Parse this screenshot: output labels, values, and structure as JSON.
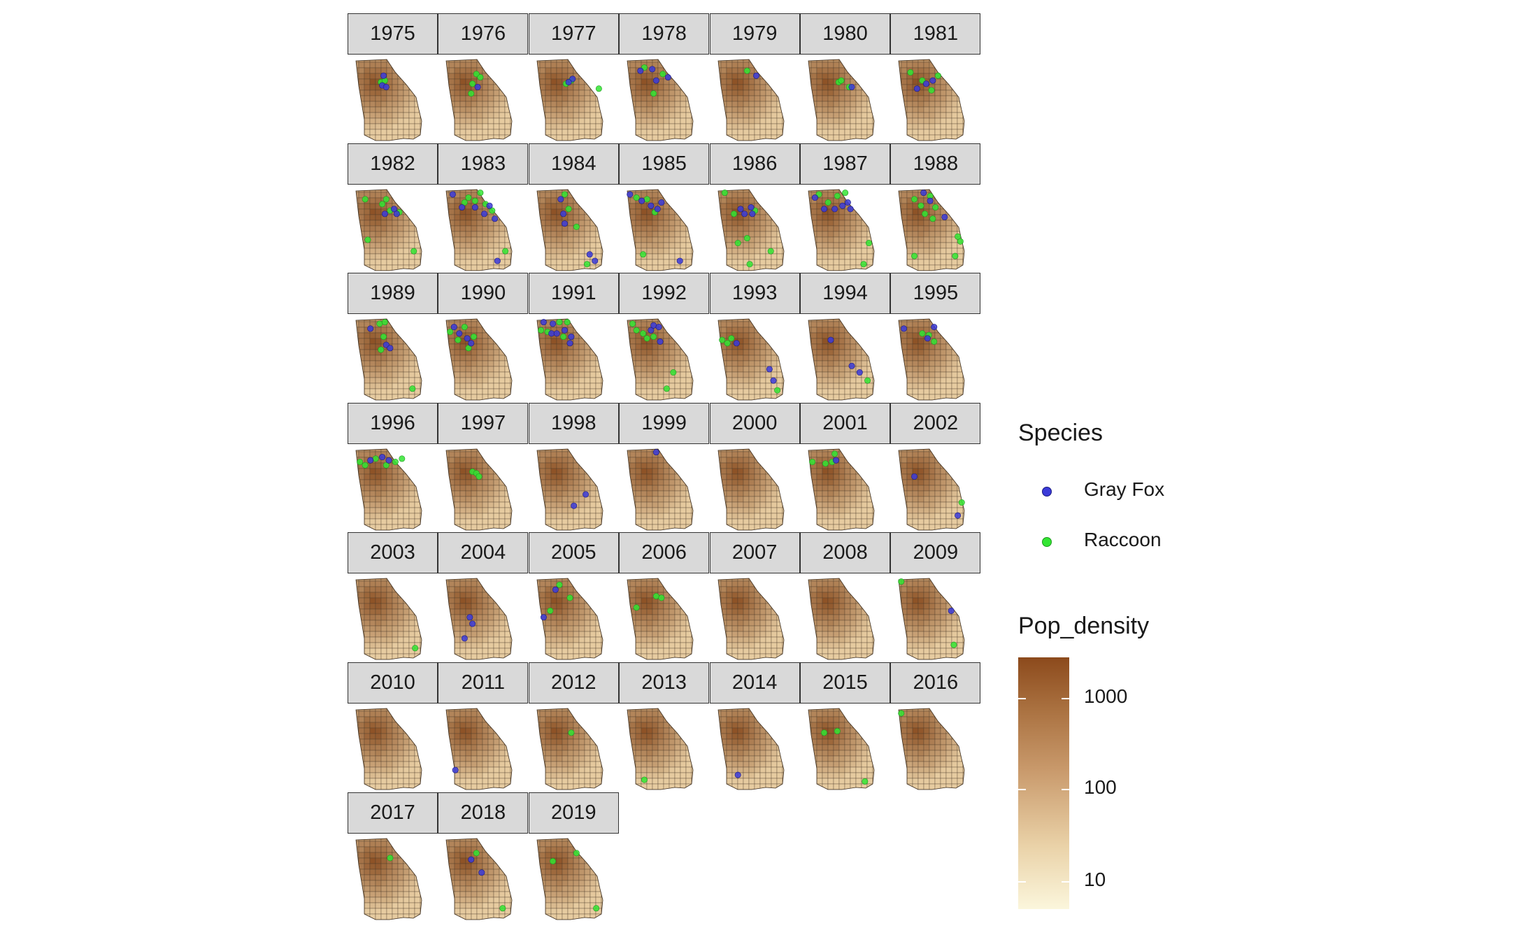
{
  "facet_years": [
    "1975",
    "1976",
    "1977",
    "1978",
    "1979",
    "1980",
    "1981",
    "1982",
    "1983",
    "1984",
    "1985",
    "1986",
    "1987",
    "1988",
    "1989",
    "1990",
    "1991",
    "1992",
    "1993",
    "1994",
    "1995",
    "1996",
    "1997",
    "1998",
    "1999",
    "2000",
    "2001",
    "2002",
    "2003",
    "2004",
    "2005",
    "2006",
    "2007",
    "2008",
    "2009",
    "2010",
    "2011",
    "2012",
    "2013",
    "2014",
    "2015",
    "2016",
    "2017",
    "2018",
    "2019"
  ],
  "legend": {
    "species_title": "Species",
    "species": [
      {
        "name": "Gray Fox",
        "color": "#3b3bd9"
      },
      {
        "name": "Raccoon",
        "color": "#33e533"
      }
    ],
    "density_title": "Pop_density",
    "density_scale": "log10",
    "density_breaks": [
      "1000",
      "100",
      "10"
    ],
    "density_colors": {
      "low": "#fbf6dc",
      "high": "#8c4a1c"
    }
  },
  "map_colors": {
    "county_stroke": "#4a3a2a",
    "border": "#3a2a1a"
  },
  "map_data": {
    "type": "faceted-choropleth-with-points",
    "region": "Georgia counties",
    "points": {
      "1975": {
        "fox": [
          [
            0.42,
            0.2
          ],
          [
            0.4,
            0.32
          ],
          [
            0.46,
            0.34
          ]
        ],
        "raccoon": [
          [
            0.38,
            0.28
          ],
          [
            0.44,
            0.26
          ]
        ]
      },
      "1976": {
        "fox": [
          [
            0.48,
            0.34
          ]
        ],
        "raccoon": [
          [
            0.46,
            0.18
          ],
          [
            0.52,
            0.22
          ],
          [
            0.4,
            0.3
          ],
          [
            0.38,
            0.42
          ]
        ]
      },
      "1977": {
        "fox": [
          [
            0.54,
            0.24
          ],
          [
            0.48,
            0.28
          ]
        ],
        "raccoon": [
          [
            0.44,
            0.3
          ],
          [
            0.52,
            0.26
          ],
          [
            0.94,
            0.36
          ]
        ]
      },
      "1978": {
        "fox": [
          [
            0.2,
            0.14
          ],
          [
            0.38,
            0.12
          ],
          [
            0.44,
            0.26
          ],
          [
            0.62,
            0.22
          ]
        ],
        "raccoon": [
          [
            0.26,
            0.1
          ],
          [
            0.54,
            0.18
          ],
          [
            0.4,
            0.42
          ]
        ]
      },
      "1979": {
        "fox": [
          [
            0.58,
            0.2
          ]
        ],
        "raccoon": [
          [
            0.44,
            0.14
          ]
        ]
      },
      "1980": {
        "fox": [
          [
            0.66,
            0.34
          ]
        ],
        "raccoon": [
          [
            0.46,
            0.28
          ],
          [
            0.5,
            0.26
          ],
          [
            0.62,
            0.34
          ]
        ]
      },
      "1981": {
        "fox": [
          [
            0.28,
            0.36
          ],
          [
            0.42,
            0.3
          ],
          [
            0.52,
            0.26
          ]
        ],
        "raccoon": [
          [
            0.18,
            0.16
          ],
          [
            0.36,
            0.26
          ],
          [
            0.6,
            0.2
          ],
          [
            0.5,
            0.38
          ]
        ]
      },
      "1982": {
        "fox": [
          [
            0.44,
            0.3
          ],
          [
            0.58,
            0.24
          ],
          [
            0.62,
            0.3
          ]
        ],
        "raccoon": [
          [
            0.14,
            0.12
          ],
          [
            0.4,
            0.18
          ],
          [
            0.46,
            0.12
          ],
          [
            0.52,
            0.26
          ],
          [
            0.66,
            0.28
          ],
          [
            0.18,
            0.62
          ],
          [
            0.88,
            0.76
          ]
        ]
      },
      "1983": {
        "fox": [
          [
            0.1,
            0.06
          ],
          [
            0.24,
            0.22
          ],
          [
            0.44,
            0.22
          ],
          [
            0.58,
            0.3
          ],
          [
            0.66,
            0.2
          ],
          [
            0.74,
            0.36
          ],
          [
            0.78,
            0.88
          ]
        ],
        "raccoon": [
          [
            0.28,
            0.16
          ],
          [
            0.34,
            0.1
          ],
          [
            0.44,
            0.14
          ],
          [
            0.52,
            0.04
          ],
          [
            0.6,
            0.18
          ],
          [
            0.7,
            0.26
          ],
          [
            0.9,
            0.76
          ]
        ]
      },
      "1984": {
        "fox": [
          [
            0.36,
            0.12
          ],
          [
            0.4,
            0.3
          ],
          [
            0.42,
            0.42
          ],
          [
            0.8,
            0.8
          ],
          [
            0.88,
            0.88
          ]
        ],
        "raccoon": [
          [
            0.42,
            0.06
          ],
          [
            0.48,
            0.24
          ],
          [
            0.6,
            0.46
          ],
          [
            0.76,
            0.92
          ]
        ]
      },
      "1985": {
        "fox": [
          [
            0.04,
            0.06
          ],
          [
            0.22,
            0.14
          ],
          [
            0.36,
            0.2
          ],
          [
            0.46,
            0.24
          ],
          [
            0.52,
            0.16
          ],
          [
            0.8,
            0.88
          ]
        ],
        "raccoon": [
          [
            0.14,
            0.1
          ],
          [
            0.3,
            0.12
          ],
          [
            0.42,
            0.28
          ],
          [
            0.24,
            0.8
          ]
        ]
      },
      "1986": {
        "fox": [
          [
            0.34,
            0.24
          ],
          [
            0.4,
            0.3
          ],
          [
            0.5,
            0.22
          ],
          [
            0.52,
            0.3
          ]
        ],
        "raccoon": [
          [
            0.1,
            0.04
          ],
          [
            0.24,
            0.3
          ],
          [
            0.3,
            0.66
          ],
          [
            0.44,
            0.6
          ],
          [
            0.48,
            0.92
          ],
          [
            0.8,
            0.76
          ],
          [
            0.56,
            0.26
          ]
        ]
      },
      "1987": {
        "fox": [
          [
            0.1,
            0.1
          ],
          [
            0.24,
            0.24
          ],
          [
            0.4,
            0.24
          ],
          [
            0.52,
            0.2
          ],
          [
            0.6,
            0.16
          ],
          [
            0.64,
            0.24
          ]
        ],
        "raccoon": [
          [
            0.16,
            0.06
          ],
          [
            0.3,
            0.16
          ],
          [
            0.44,
            0.08
          ],
          [
            0.56,
            0.04
          ],
          [
            0.92,
            0.66
          ],
          [
            0.84,
            0.92
          ]
        ]
      },
      "1988": {
        "fox": [
          [
            0.38,
            0.04
          ],
          [
            0.48,
            0.14
          ],
          [
            0.7,
            0.34
          ]
        ],
        "raccoon": [
          [
            0.24,
            0.12
          ],
          [
            0.34,
            0.2
          ],
          [
            0.4,
            0.3
          ],
          [
            0.48,
            0.08
          ],
          [
            0.56,
            0.22
          ],
          [
            0.52,
            0.36
          ],
          [
            0.9,
            0.58
          ],
          [
            0.94,
            0.64
          ],
          [
            0.86,
            0.82
          ],
          [
            0.24,
            0.82
          ]
        ]
      },
      "1989": {
        "fox": [
          [
            0.22,
            0.12
          ],
          [
            0.46,
            0.32
          ],
          [
            0.52,
            0.36
          ]
        ],
        "raccoon": [
          [
            0.36,
            0.06
          ],
          [
            0.44,
            0.04
          ],
          [
            0.42,
            0.22
          ],
          [
            0.38,
            0.38
          ],
          [
            0.86,
            0.86
          ]
        ]
      },
      "1990": {
        "fox": [
          [
            0.12,
            0.1
          ],
          [
            0.2,
            0.18
          ],
          [
            0.32,
            0.24
          ],
          [
            0.38,
            0.3
          ]
        ],
        "raccoon": [
          [
            0.06,
            0.16
          ],
          [
            0.18,
            0.26
          ],
          [
            0.28,
            0.1
          ],
          [
            0.42,
            0.22
          ],
          [
            0.34,
            0.36
          ]
        ]
      },
      "1991": {
        "fox": [
          [
            0.1,
            0.04
          ],
          [
            0.24,
            0.06
          ],
          [
            0.22,
            0.18
          ],
          [
            0.3,
            0.18
          ],
          [
            0.42,
            0.14
          ],
          [
            0.52,
            0.22
          ],
          [
            0.5,
            0.3
          ]
        ],
        "raccoon": [
          [
            0.06,
            0.14
          ],
          [
            0.16,
            0.16
          ],
          [
            0.34,
            0.04
          ],
          [
            0.46,
            0.04
          ],
          [
            0.4,
            0.22
          ]
        ]
      },
      "1992": {
        "fox": [
          [
            0.36,
            0.14
          ],
          [
            0.4,
            0.08
          ],
          [
            0.48,
            0.1
          ],
          [
            0.5,
            0.28
          ]
        ],
        "raccoon": [
          [
            0.08,
            0.06
          ],
          [
            0.14,
            0.14
          ],
          [
            0.24,
            0.18
          ],
          [
            0.3,
            0.24
          ],
          [
            0.4,
            0.22
          ],
          [
            0.7,
            0.66
          ],
          [
            0.6,
            0.86
          ]
        ]
      },
      "1993": {
        "fox": [
          [
            0.28,
            0.3
          ],
          [
            0.78,
            0.62
          ],
          [
            0.84,
            0.76
          ]
        ],
        "raccoon": [
          [
            0.06,
            0.26
          ],
          [
            0.14,
            0.3
          ],
          [
            0.2,
            0.24
          ],
          [
            0.9,
            0.88
          ]
        ]
      },
      "1994": {
        "fox": [
          [
            0.34,
            0.26
          ],
          [
            0.66,
            0.58
          ],
          [
            0.78,
            0.66
          ]
        ],
        "raccoon": [
          [
            0.9,
            0.76
          ]
        ]
      },
      "1995": {
        "fox": [
          [
            0.08,
            0.12
          ],
          [
            0.54,
            0.1
          ],
          [
            0.44,
            0.24
          ]
        ],
        "raccoon": [
          [
            0.36,
            0.18
          ],
          [
            0.46,
            0.2
          ],
          [
            0.54,
            0.28
          ]
        ]
      },
      "1996": {
        "fox": [
          [
            0.22,
            0.14
          ],
          [
            0.4,
            0.1
          ],
          [
            0.5,
            0.14
          ]
        ],
        "raccoon": [
          [
            0.06,
            0.16
          ],
          [
            0.14,
            0.2
          ],
          [
            0.3,
            0.12
          ],
          [
            0.46,
            0.2
          ],
          [
            0.6,
            0.16
          ],
          [
            0.7,
            0.12
          ]
        ]
      },
      "1997": {
        "fox": [],
        "raccoon": [
          [
            0.4,
            0.28
          ],
          [
            0.46,
            0.3
          ],
          [
            0.5,
            0.34
          ]
        ]
      },
      "1998": {
        "fox": [
          [
            0.56,
            0.7
          ],
          [
            0.74,
            0.56
          ]
        ],
        "raccoon": []
      },
      "1999": {
        "fox": [
          [
            0.44,
            0.04
          ]
        ],
        "raccoon": []
      },
      "2000": {
        "fox": [],
        "raccoon": []
      },
      "2001": {
        "fox": [
          [
            0.42,
            0.14
          ]
        ],
        "raccoon": [
          [
            0.06,
            0.16
          ],
          [
            0.26,
            0.18
          ],
          [
            0.36,
            0.16
          ],
          [
            0.4,
            0.06
          ]
        ]
      },
      "2002": {
        "fox": [
          [
            0.24,
            0.34
          ],
          [
            0.9,
            0.82
          ]
        ],
        "raccoon": [
          [
            0.96,
            0.66
          ]
        ]
      },
      "2003": {
        "fox": [],
        "raccoon": [
          [
            0.9,
            0.86
          ]
        ]
      },
      "2004": {
        "fox": [
          [
            0.36,
            0.48
          ],
          [
            0.4,
            0.56
          ],
          [
            0.28,
            0.74
          ]
        ],
        "raccoon": []
      },
      "2005": {
        "fox": [
          [
            0.28,
            0.14
          ],
          [
            0.1,
            0.48
          ]
        ],
        "raccoon": [
          [
            0.34,
            0.08
          ],
          [
            0.5,
            0.24
          ],
          [
            0.2,
            0.4
          ]
        ]
      },
      "2006": {
        "fox": [],
        "raccoon": [
          [
            0.14,
            0.36
          ],
          [
            0.44,
            0.22
          ],
          [
            0.52,
            0.24
          ]
        ]
      },
      "2007": {
        "fox": [],
        "raccoon": []
      },
      "2008": {
        "fox": [],
        "raccoon": []
      },
      "2009": {
        "fox": [
          [
            0.8,
            0.4
          ]
        ],
        "raccoon": [
          [
            0.04,
            0.04
          ],
          [
            0.84,
            0.82
          ]
        ]
      },
      "2010": {
        "fox": [],
        "raccoon": []
      },
      "2011": {
        "fox": [
          [
            0.14,
            0.76
          ]
        ],
        "raccoon": []
      },
      "2012": {
        "fox": [],
        "raccoon": [
          [
            0.52,
            0.3
          ]
        ]
      },
      "2013": {
        "fox": [],
        "raccoon": [
          [
            0.26,
            0.88
          ]
        ]
      },
      "2014": {
        "fox": [
          [
            0.3,
            0.82
          ]
        ],
        "raccoon": []
      },
      "2015": {
        "fox": [],
        "raccoon": [
          [
            0.24,
            0.3
          ],
          [
            0.44,
            0.28
          ],
          [
            0.86,
            0.9
          ]
        ]
      },
      "2016": {
        "fox": [],
        "raccoon": [
          [
            0.04,
            0.06
          ]
        ]
      },
      "2017": {
        "fox": [],
        "raccoon": [
          [
            0.52,
            0.24
          ]
        ]
      },
      "2018": {
        "fox": [
          [
            0.38,
            0.26
          ],
          [
            0.54,
            0.42
          ]
        ],
        "raccoon": [
          [
            0.46,
            0.18
          ],
          [
            0.86,
            0.86
          ]
        ]
      },
      "2019": {
        "fox": [],
        "raccoon": [
          [
            0.24,
            0.28
          ],
          [
            0.6,
            0.18
          ],
          [
            0.9,
            0.86
          ]
        ]
      }
    }
  }
}
